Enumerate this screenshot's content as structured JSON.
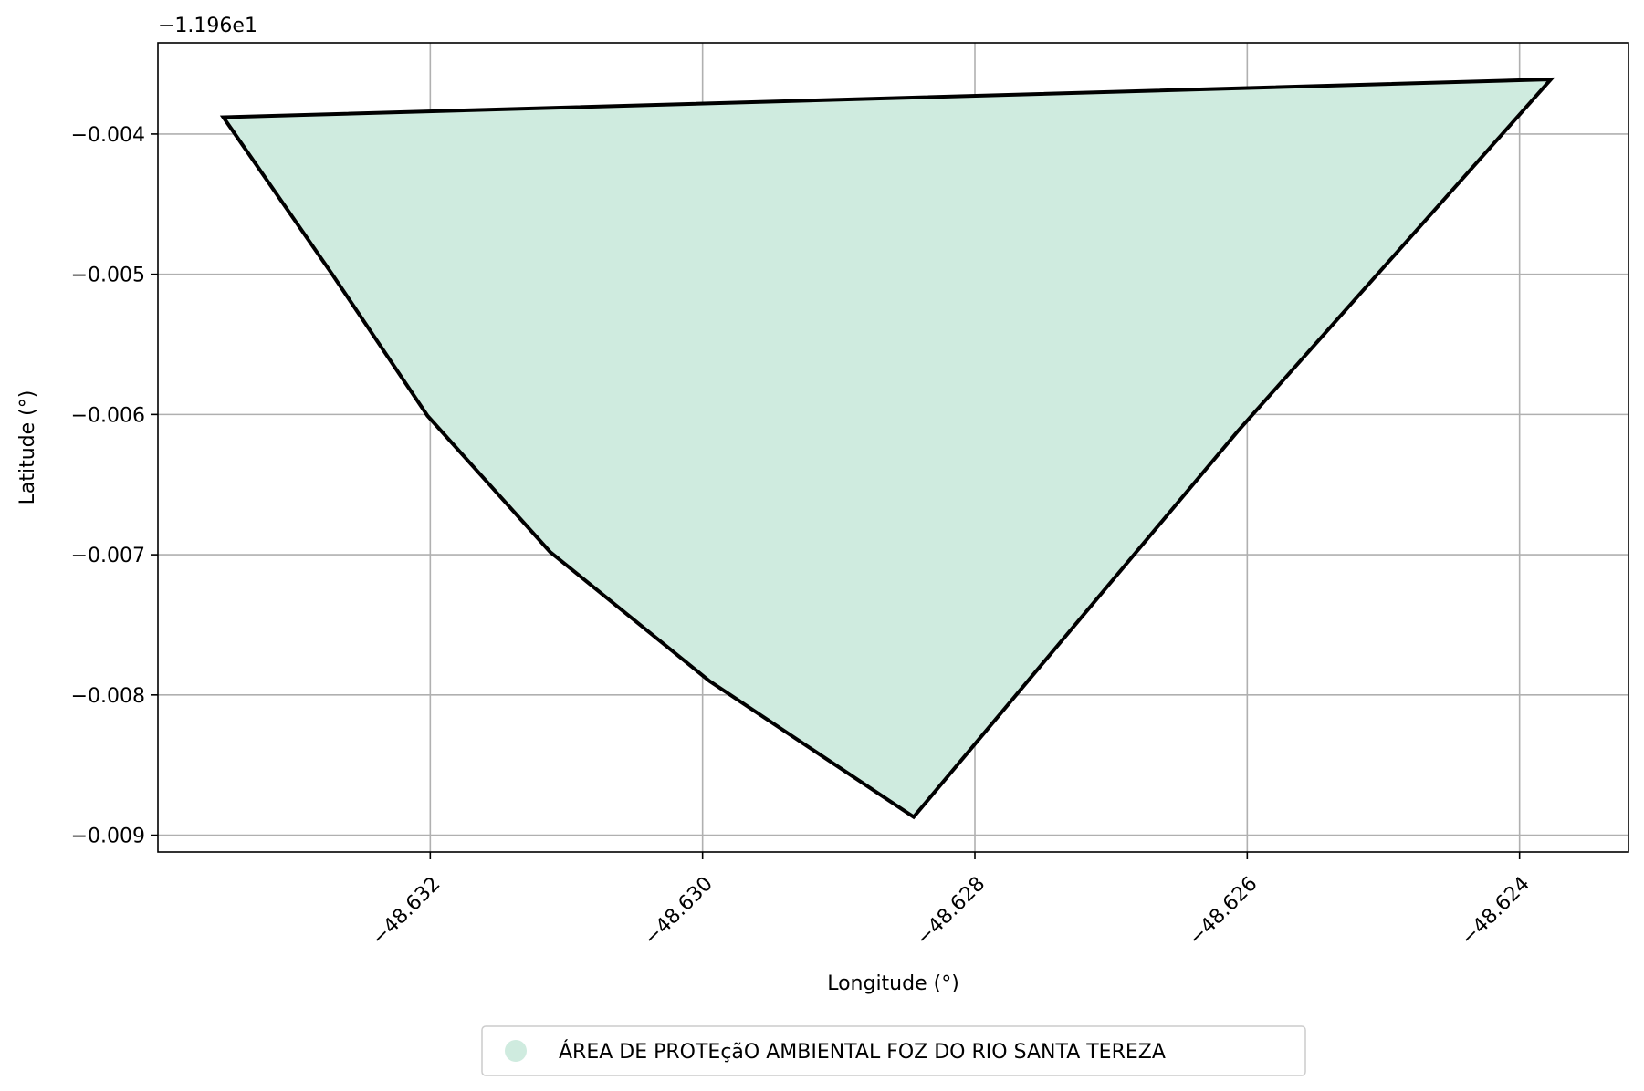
{
  "chart_data": {
    "type": "area",
    "xlabel": "Longitude (°)",
    "ylabel": "Latitude (°)",
    "y_offset_text": "−1.196e1",
    "xlim": [
      -48.634,
      -48.6232
    ],
    "ylim": [
      -0.00912,
      -0.00335
    ],
    "xticks": [
      {
        "value": -48.632,
        "label": "−48.632"
      },
      {
        "value": -48.63,
        "label": "−48.630"
      },
      {
        "value": -48.628,
        "label": "−48.628"
      },
      {
        "value": -48.626,
        "label": "−48.626"
      },
      {
        "value": -48.624,
        "label": "−48.624"
      }
    ],
    "yticks": [
      {
        "value": -0.004,
        "label": "−0.004"
      },
      {
        "value": -0.005,
        "label": "−0.005"
      },
      {
        "value": -0.006,
        "label": "−0.006"
      },
      {
        "value": -0.007,
        "label": "−0.007"
      },
      {
        "value": -0.008,
        "label": "−0.008"
      },
      {
        "value": -0.009,
        "label": "−0.009"
      }
    ],
    "grid": true,
    "legend_position": "bottom-center",
    "series": [
      {
        "name": "ÁREA DE PROTEçãO AMBIENTAL FOZ DO RIO SANTA TEREZA",
        "fill_color": "#cfebdf",
        "edge_color": "#000000",
        "x": [
          -48.63352,
          -48.63272,
          -48.63202,
          -48.63112,
          -48.62995,
          -48.62845,
          -48.62607,
          -48.62377
        ],
        "y": [
          -0.00388,
          -0.005,
          -0.00601,
          -0.00698,
          -0.0079,
          -0.00887,
          -0.00612,
          -0.00361
        ]
      }
    ]
  }
}
